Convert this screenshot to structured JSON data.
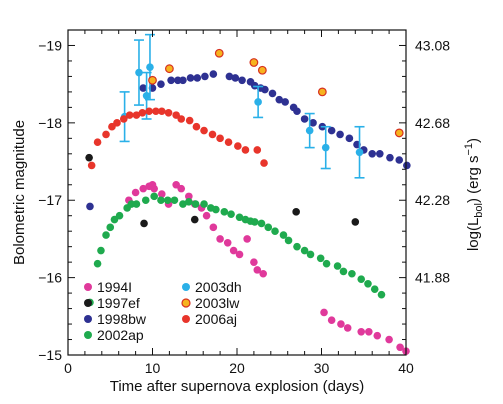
{
  "chart_data": {
    "type": "scatter",
    "title": "",
    "xlabel": "Time after supernova explosion (days)",
    "ylabel": "Bolometric magnitude",
    "y2label_main": "log(L",
    "y2label_sub": "bol",
    "y2label_tail": ") (erg s",
    "y2label_sup": "−1",
    "y2label_close": ")",
    "xlim": [
      0,
      40
    ],
    "ylim": [
      -15,
      -19.2
    ],
    "y_inverted": true,
    "xticks": [
      "0",
      "10",
      "20",
      "30",
      "40"
    ],
    "yticks": [
      {
        "value": -19,
        "label": "−19"
      },
      {
        "value": -18,
        "label": "−18"
      },
      {
        "value": -17,
        "label": "−17"
      },
      {
        "value": -16,
        "label": "−16"
      },
      {
        "value": -15,
        "label": "−15"
      }
    ],
    "y2ticks": [
      {
        "value": -19,
        "label": "43.08"
      },
      {
        "value": -18,
        "label": "42.68"
      },
      {
        "value": -17,
        "label": "42.28"
      },
      {
        "value": -16,
        "label": "41.88"
      }
    ],
    "legend_position": "bottom-left",
    "series": [
      {
        "name": "1994I",
        "color": "#e0399b",
        "points": [
          [
            7.2,
            -17.0
          ],
          [
            8.0,
            -17.1
          ],
          [
            8.9,
            -17.15
          ],
          [
            9.6,
            -17.18
          ],
          [
            10.0,
            -17.2
          ],
          [
            10.2,
            -17.15
          ],
          [
            11.1,
            -17.08
          ],
          [
            11.9,
            -16.95
          ],
          [
            12.8,
            -17.2
          ],
          [
            13.4,
            -17.15
          ],
          [
            14.3,
            -17.05
          ],
          [
            15.0,
            -16.95
          ],
          [
            15.8,
            -16.9
          ],
          [
            16.4,
            -16.8
          ],
          [
            17.2,
            -16.65
          ],
          [
            18.0,
            -16.5
          ],
          [
            18.9,
            -16.45
          ],
          [
            19.6,
            -16.35
          ],
          [
            20.3,
            -16.3
          ],
          [
            21.2,
            -16.5
          ],
          [
            22.0,
            -16.2
          ],
          [
            22.4,
            -16.1
          ],
          [
            23.1,
            -16.05
          ],
          [
            30.3,
            -15.55
          ],
          [
            31.2,
            -15.45
          ],
          [
            32.3,
            -15.4
          ],
          [
            33.1,
            -15.35
          ],
          [
            34.7,
            -15.3
          ],
          [
            35.6,
            -15.3
          ],
          [
            36.6,
            -15.25
          ],
          [
            38.0,
            -15.2
          ],
          [
            39.3,
            -15.1
          ],
          [
            40.0,
            -15.05
          ]
        ]
      },
      {
        "name": "1997ef",
        "color": "#1a1a1a",
        "points": [
          [
            2.5,
            -17.55
          ],
          [
            9.0,
            -16.7
          ],
          [
            15.0,
            -16.75
          ],
          [
            27.0,
            -16.85
          ],
          [
            34.0,
            -16.72
          ]
        ]
      },
      {
        "name": "1998bw",
        "color": "#2e3192",
        "points": [
          [
            2.6,
            -16.92
          ],
          [
            8.9,
            -18.45
          ],
          [
            10.0,
            -18.45
          ],
          [
            11.0,
            -18.5
          ],
          [
            12.2,
            -18.55
          ],
          [
            13.0,
            -18.55
          ],
          [
            13.6,
            -18.55
          ],
          [
            14.5,
            -18.58
          ],
          [
            15.3,
            -18.58
          ],
          [
            16.2,
            -18.6
          ],
          [
            17.2,
            -18.63
          ],
          [
            19.1,
            -18.6
          ],
          [
            19.8,
            -18.58
          ],
          [
            20.6,
            -18.55
          ],
          [
            21.6,
            -18.53
          ],
          [
            22.1,
            -18.48
          ],
          [
            22.8,
            -18.45
          ],
          [
            23.3,
            -18.43
          ],
          [
            24.2,
            -18.38
          ],
          [
            25.0,
            -18.3
          ],
          [
            25.7,
            -18.27
          ],
          [
            26.7,
            -18.2
          ],
          [
            27.1,
            -18.15
          ],
          [
            28.0,
            -18.05
          ],
          [
            29.0,
            -18.0
          ],
          [
            30.1,
            -17.95
          ],
          [
            31.2,
            -17.9
          ],
          [
            32.2,
            -17.85
          ],
          [
            33.3,
            -17.8
          ],
          [
            34.2,
            -17.72
          ],
          [
            35.0,
            -17.65
          ],
          [
            36.0,
            -17.6
          ],
          [
            36.9,
            -17.6
          ],
          [
            38.1,
            -17.55
          ],
          [
            39.2,
            -17.52
          ],
          [
            40.1,
            -17.45
          ]
        ]
      },
      {
        "name": "2002ap",
        "color": "#1faa4e",
        "points": [
          [
            2.6,
            -15.68
          ],
          [
            3.5,
            -16.18
          ],
          [
            3.9,
            -16.35
          ],
          [
            4.5,
            -16.55
          ],
          [
            5.0,
            -16.65
          ],
          [
            5.5,
            -16.75
          ],
          [
            6.1,
            -16.8
          ],
          [
            7.0,
            -16.9
          ],
          [
            7.5,
            -16.95
          ],
          [
            8.1,
            -16.95
          ],
          [
            9.2,
            -17.0
          ],
          [
            10.2,
            -17.05
          ],
          [
            11.0,
            -17.0
          ],
          [
            11.8,
            -17.0
          ],
          [
            12.6,
            -17.0
          ],
          [
            13.6,
            -16.95
          ],
          [
            14.3,
            -16.98
          ],
          [
            15.1,
            -16.95
          ],
          [
            16.1,
            -16.95
          ],
          [
            16.9,
            -16.9
          ],
          [
            17.5,
            -16.88
          ],
          [
            18.5,
            -16.85
          ],
          [
            19.3,
            -16.82
          ],
          [
            20.3,
            -16.78
          ],
          [
            21.0,
            -16.75
          ],
          [
            21.6,
            -16.73
          ],
          [
            22.1,
            -16.72
          ],
          [
            22.9,
            -16.7
          ],
          [
            23.7,
            -16.65
          ],
          [
            24.5,
            -16.6
          ],
          [
            25.5,
            -16.55
          ],
          [
            26.1,
            -16.48
          ],
          [
            27.1,
            -16.4
          ],
          [
            28.0,
            -16.35
          ],
          [
            28.7,
            -16.3
          ],
          [
            29.9,
            -16.25
          ],
          [
            30.6,
            -16.18
          ],
          [
            31.9,
            -16.15
          ],
          [
            32.6,
            -16.08
          ],
          [
            33.6,
            -16.05
          ],
          [
            34.7,
            -15.98
          ],
          [
            35.5,
            -15.92
          ],
          [
            36.3,
            -15.85
          ],
          [
            37.1,
            -15.78
          ]
        ]
      },
      {
        "name": "2003dh",
        "color": "#2ab0e8",
        "points": [
          [
            6.7,
            -18.08,
            0.32
          ],
          [
            8.4,
            -18.65,
            0.42
          ],
          [
            9.3,
            -18.35,
            0.3
          ],
          [
            9.7,
            -18.72,
            0.42
          ],
          [
            22.5,
            -18.27,
            0.2
          ],
          [
            28.6,
            -17.9,
            0.22
          ],
          [
            30.5,
            -17.68,
            0.27
          ],
          [
            34.5,
            -17.62,
            0.33
          ]
        ]
      },
      {
        "name": "2003lw",
        "color": "#f6b31e",
        "points": [
          [
            10.0,
            -18.55
          ],
          [
            12.0,
            -18.7
          ],
          [
            17.9,
            -18.9
          ],
          [
            22.0,
            -18.78
          ],
          [
            23.0,
            -18.68
          ],
          [
            30.1,
            -18.4
          ],
          [
            39.2,
            -17.87
          ]
        ]
      },
      {
        "name": "2006aj",
        "color": "#e8352b",
        "points": [
          [
            2.8,
            -17.45
          ],
          [
            3.5,
            -17.75
          ],
          [
            4.5,
            -17.85
          ],
          [
            5.2,
            -17.95
          ],
          [
            5.8,
            -18.0
          ],
          [
            6.6,
            -18.05
          ],
          [
            7.3,
            -18.1
          ],
          [
            8.1,
            -18.1
          ],
          [
            8.8,
            -18.13
          ],
          [
            9.6,
            -18.15
          ],
          [
            10.4,
            -18.15
          ],
          [
            11.1,
            -18.15
          ],
          [
            11.9,
            -18.13
          ],
          [
            12.8,
            -18.1
          ],
          [
            13.4,
            -18.05
          ],
          [
            14.4,
            -18.03
          ],
          [
            15.2,
            -17.95
          ],
          [
            16.1,
            -17.9
          ],
          [
            17.1,
            -17.85
          ],
          [
            18.0,
            -17.8
          ],
          [
            19.0,
            -17.75
          ],
          [
            20.1,
            -17.7
          ],
          [
            21.0,
            -17.65
          ],
          [
            22.4,
            -17.65
          ],
          [
            23.2,
            -17.48
          ]
        ]
      }
    ]
  }
}
